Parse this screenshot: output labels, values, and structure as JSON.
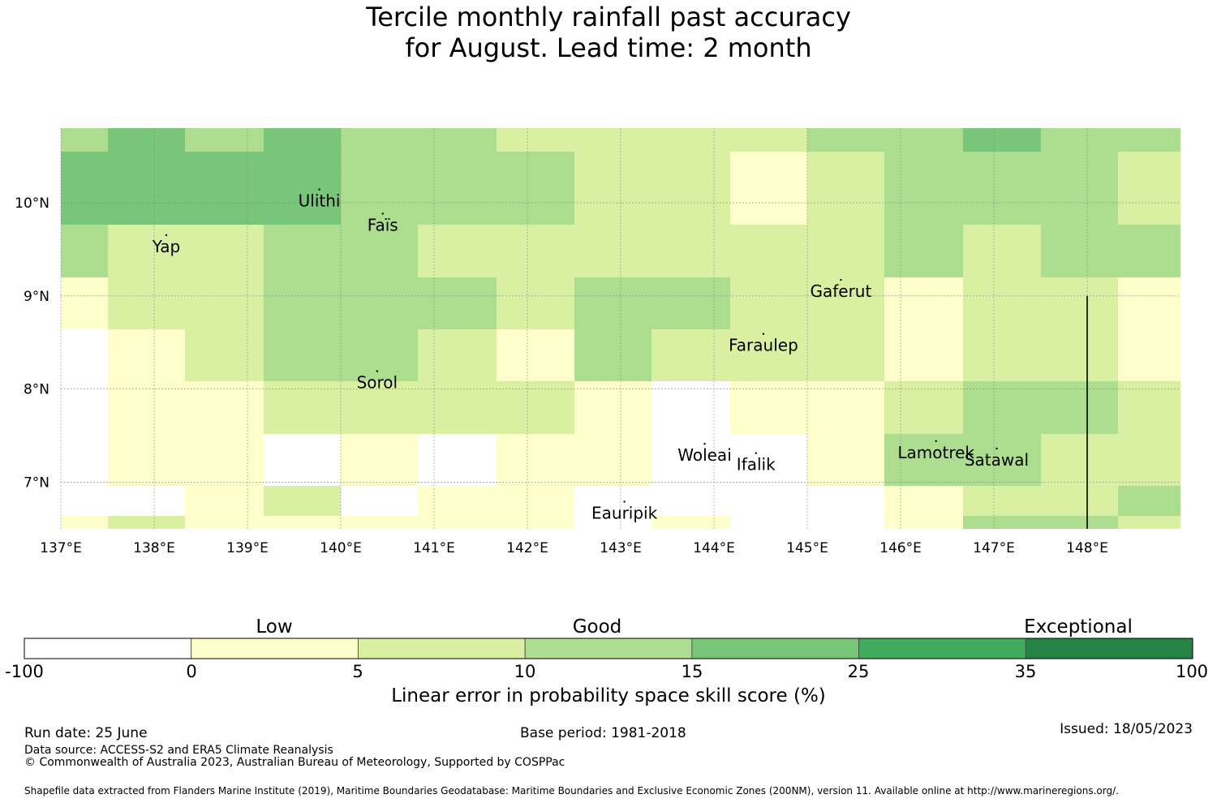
{
  "title": {
    "line1": "Tercile monthly rainfall past accuracy",
    "line2": "for August. Lead time: 2 month"
  },
  "map": {
    "lon_range": [
      137,
      149
    ],
    "lat_range": [
      6.5,
      10.8
    ],
    "lon_ticks": [
      {
        "value": 137,
        "label": "137°E"
      },
      {
        "value": 138,
        "label": "138°E"
      },
      {
        "value": 139,
        "label": "139°E"
      },
      {
        "value": 140,
        "label": "140°E"
      },
      {
        "value": 141,
        "label": "141°E"
      },
      {
        "value": 142,
        "label": "142°E"
      },
      {
        "value": 143,
        "label": "143°E"
      },
      {
        "value": 144,
        "label": "144°E"
      },
      {
        "value": 145,
        "label": "145°E"
      },
      {
        "value": 146,
        "label": "146°E"
      },
      {
        "value": 147,
        "label": "147°E"
      },
      {
        "value": 148,
        "label": "148°E"
      }
    ],
    "lat_ticks": [
      {
        "value": 10,
        "label": "10°N"
      },
      {
        "value": 9,
        "label": "9°N"
      },
      {
        "value": 8,
        "label": "8°N"
      },
      {
        "value": 7,
        "label": "7°N"
      }
    ],
    "grid": true,
    "grid_columns_lon": [
      137,
      137.5,
      138.33,
      139.17,
      140,
      140.83,
      141.67,
      142.5,
      143.33,
      144.17,
      145,
      145.83,
      146.67,
      147.5,
      148.33,
      149
    ],
    "grid_rows_lat": [
      10.8,
      10.55,
      9.76,
      9.2,
      8.64,
      8.08,
      7.52,
      6.96,
      6.64,
      6.5
    ],
    "cell_classes": [
      [
        3,
        4,
        3,
        4,
        3,
        3,
        2,
        2,
        2,
        2,
        3,
        3,
        4,
        3,
        3
      ],
      [
        4,
        4,
        4,
        4,
        3,
        3,
        3,
        2,
        2,
        1,
        2,
        3,
        3,
        3,
        2
      ],
      [
        3,
        2,
        2,
        3,
        3,
        2,
        2,
        2,
        2,
        2,
        2,
        3,
        2,
        3,
        3
      ],
      [
        1,
        2,
        2,
        3,
        3,
        3,
        2,
        3,
        3,
        2,
        2,
        1,
        2,
        2,
        1
      ],
      [
        0,
        1,
        2,
        3,
        3,
        2,
        1,
        3,
        2,
        2,
        2,
        1,
        2,
        2,
        1
      ],
      [
        0,
        1,
        1,
        2,
        2,
        2,
        2,
        1,
        0,
        1,
        1,
        2,
        3,
        3,
        2
      ],
      [
        0,
        1,
        1,
        0,
        1,
        0,
        1,
        1,
        0,
        0,
        1,
        3,
        3,
        2,
        2
      ],
      [
        0,
        0,
        1,
        2,
        0,
        1,
        1,
        0,
        0,
        0,
        0,
        1,
        2,
        2,
        3
      ],
      [
        1,
        2,
        1,
        1,
        1,
        1,
        1,
        0,
        1,
        0,
        0,
        1,
        3,
        3,
        2
      ]
    ],
    "islands": [
      {
        "name": "Yap",
        "lon": 138.13,
        "lat": 9.53
      },
      {
        "name": "Ulithi",
        "lon": 139.77,
        "lat": 10.02
      },
      {
        "name": "Faïs",
        "lon": 140.45,
        "lat": 9.76
      },
      {
        "name": "Gaferut",
        "lon": 145.36,
        "lat": 9.05
      },
      {
        "name": "Faraulep",
        "lon": 144.53,
        "lat": 8.47
      },
      {
        "name": "Sorol",
        "lon": 140.39,
        "lat": 8.07
      },
      {
        "name": "Woleai",
        "lon": 143.9,
        "lat": 7.29
      },
      {
        "name": "Ifalik",
        "lon": 144.45,
        "lat": 7.19
      },
      {
        "name": "Lamotrek",
        "lon": 146.38,
        "lat": 7.32
      },
      {
        "name": "Satawal",
        "lon": 147.03,
        "lat": 7.24
      },
      {
        "name": "Eauripik",
        "lon": 143.04,
        "lat": 6.67
      }
    ],
    "boundary_line": {
      "lon": 148.0,
      "lat_from": 6.5,
      "lat_to": 9.0
    }
  },
  "colorbar": {
    "levels": [
      {
        "label": "Low",
        "center": 0.5
      },
      {
        "label": "Good",
        "center": 3.5
      },
      {
        "label": "Exceptional",
        "center": 6.5
      }
    ],
    "ticks": [
      "-100",
      "0",
      "5",
      "10",
      "15",
      "25",
      "35",
      "100"
    ],
    "colors": [
      "#ffffff",
      "#ffffcc",
      "#d9f0a3",
      "#addd8e",
      "#78c679",
      "#41ab5d",
      "#238443"
    ],
    "title": "Linear error in probability space skill score (%)"
  },
  "footer": {
    "run_date": "Run date: 25 June",
    "base_period": "Base period: 1981-2018",
    "issued": "Issued: 18/05/2023",
    "data_source": "Data source: ACCESS-S2 and ERA5 Climate Reanalysis",
    "copyright": "© Commonwealth of Australia 2023, Australian Bureau of Meteorology, Supported by COSPPac",
    "shapefile": "Shapefile data extracted from Flanders Marine Institute (2019), Maritime Boundaries Geodatabase: Maritime Boundaries and Exclusive Economic Zones (200NM), version 11. Available online at http://www.marineregions.org/."
  }
}
